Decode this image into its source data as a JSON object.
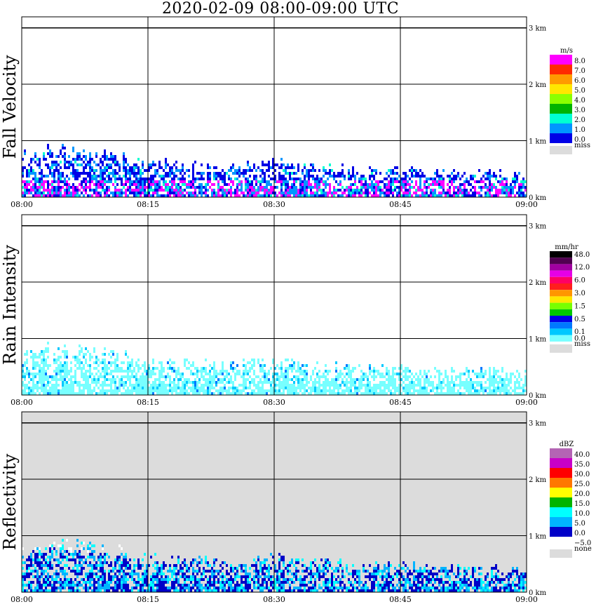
{
  "title": "2020-02-09   08:00-09:00 UTC",
  "chart_data": [
    {
      "type": "heatmap",
      "ylabel": "Fall Velocity",
      "x_ticks": [
        "08:00",
        "08:15",
        "08:30",
        "08:45",
        "09:00"
      ],
      "y_ticks": [
        "0 km",
        "1 km",
        "2 km",
        "3 km"
      ],
      "xlim": [
        "08:00",
        "09:00"
      ],
      "ylim_km": [
        0,
        3.2
      ],
      "grid": true,
      "background": "#ffffff",
      "echo_top_km": [
        {
          "time": "08:00",
          "top_km": 0.75
        },
        {
          "time": "08:05",
          "top_km": 0.9
        },
        {
          "time": "08:10",
          "top_km": 0.8
        },
        {
          "time": "08:15",
          "top_km": 0.6
        },
        {
          "time": "08:20",
          "top_km": 0.6
        },
        {
          "time": "08:25",
          "top_km": 0.55
        },
        {
          "time": "08:30",
          "top_km": 0.65
        },
        {
          "time": "08:35",
          "top_km": 0.55
        },
        {
          "time": "08:40",
          "top_km": 0.5
        },
        {
          "time": "08:45",
          "top_km": 0.5
        },
        {
          "time": "08:50",
          "top_km": 0.45
        },
        {
          "time": "08:55",
          "top_km": 0.45
        },
        {
          "time": "09:00",
          "top_km": 0.4
        }
      ],
      "colorbar": {
        "unit": "m/s",
        "entries": [
          {
            "label": "8.0",
            "color": "#ff00ff"
          },
          {
            "label": "7.0",
            "color": "#ff2a00"
          },
          {
            "label": "6.0",
            "color": "#ff9a00"
          },
          {
            "label": "5.0",
            "color": "#ffe600"
          },
          {
            "label": "4.0",
            "color": "#8cff00"
          },
          {
            "label": "3.0",
            "color": "#00b400"
          },
          {
            "label": "2.0",
            "color": "#00ffd2"
          },
          {
            "label": "1.0",
            "color": "#0096ff"
          },
          {
            "label": "0.0",
            "color": "#0000e6"
          }
        ],
        "missing_label": "miss",
        "missing_color": "#dcdcdc"
      }
    },
    {
      "type": "heatmap",
      "ylabel": "Rain Intensity",
      "x_ticks": [
        "08:00",
        "08:15",
        "08:30",
        "08:45",
        "09:00"
      ],
      "y_ticks": [
        "0 km",
        "1 km",
        "2 km",
        "3 km"
      ],
      "xlim": [
        "08:00",
        "09:00"
      ],
      "ylim_km": [
        0,
        3.2
      ],
      "grid": true,
      "background": "#ffffff",
      "echo_top_km": [
        {
          "time": "08:00",
          "top_km": 0.75
        },
        {
          "time": "08:05",
          "top_km": 0.9
        },
        {
          "time": "08:10",
          "top_km": 0.8
        },
        {
          "time": "08:15",
          "top_km": 0.6
        },
        {
          "time": "08:20",
          "top_km": 0.6
        },
        {
          "time": "08:25",
          "top_km": 0.55
        },
        {
          "time": "08:30",
          "top_km": 0.65
        },
        {
          "time": "08:35",
          "top_km": 0.55
        },
        {
          "time": "08:40",
          "top_km": 0.5
        },
        {
          "time": "08:45",
          "top_km": 0.5
        },
        {
          "time": "08:50",
          "top_km": 0.45
        },
        {
          "time": "08:55",
          "top_km": 0.45
        },
        {
          "time": "09:00",
          "top_km": 0.4
        }
      ],
      "colorbar": {
        "unit": "mm/hr",
        "entries": [
          {
            "label": "48.0",
            "color": "#000000"
          },
          {
            "label": "",
            "color": "#500050"
          },
          {
            "label": "12.0",
            "color": "#a000a0"
          },
          {
            "label": "",
            "color": "#e600e6"
          },
          {
            "label": "6.0",
            "color": "#ff0064"
          },
          {
            "label": "",
            "color": "#ff1e1e"
          },
          {
            "label": "3.0",
            "color": "#ff9600"
          },
          {
            "label": "",
            "color": "#ffe600"
          },
          {
            "label": "1.5",
            "color": "#78ff00"
          },
          {
            "label": "",
            "color": "#00c800"
          },
          {
            "label": "0.5",
            "color": "#0000e6"
          },
          {
            "label": "",
            "color": "#0078ff"
          },
          {
            "label": "0.1",
            "color": "#00c8ff"
          },
          {
            "label": "0.0",
            "color": "#78ffff"
          }
        ],
        "missing_label": "miss",
        "missing_color": "#dcdcdc"
      }
    },
    {
      "type": "heatmap",
      "ylabel": "Reflectivity",
      "x_ticks": [
        "08:00",
        "08:15",
        "08:30",
        "08:45",
        "09:00"
      ],
      "y_ticks": [
        "0 km",
        "1 km",
        "2 km",
        "3 km"
      ],
      "xlim": [
        "08:00",
        "09:00"
      ],
      "ylim_km": [
        0,
        3.2
      ],
      "grid": true,
      "background": "#dcdcdc",
      "echo_top_km": [
        {
          "time": "08:00",
          "top_km": 0.75
        },
        {
          "time": "08:05",
          "top_km": 0.9
        },
        {
          "time": "08:10",
          "top_km": 0.8
        },
        {
          "time": "08:15",
          "top_km": 0.6
        },
        {
          "time": "08:20",
          "top_km": 0.6
        },
        {
          "time": "08:25",
          "top_km": 0.55
        },
        {
          "time": "08:30",
          "top_km": 0.65
        },
        {
          "time": "08:35",
          "top_km": 0.55
        },
        {
          "time": "08:40",
          "top_km": 0.5
        },
        {
          "time": "08:45",
          "top_km": 0.5
        },
        {
          "time": "08:50",
          "top_km": 0.45
        },
        {
          "time": "08:55",
          "top_km": 0.45
        },
        {
          "time": "09:00",
          "top_km": 0.4
        }
      ],
      "colorbar": {
        "unit": "dBZ",
        "entries": [
          {
            "label": "40.0",
            "color": "#b464b4"
          },
          {
            "label": "35.0",
            "color": "#c800c8"
          },
          {
            "label": "30.0",
            "color": "#ff0000"
          },
          {
            "label": "25.0",
            "color": "#ff7800"
          },
          {
            "label": "20.0",
            "color": "#ffff00"
          },
          {
            "label": "15.0",
            "color": "#00b400"
          },
          {
            "label": "10.0",
            "color": "#00ffff"
          },
          {
            "label": "5.0",
            "color": "#00b4ff"
          },
          {
            "label": "0.0",
            "color": "#0000c8"
          },
          {
            "label": "-5.0",
            "color": "#ffffff"
          }
        ],
        "missing_label": "none",
        "missing_color": "#dcdcdc"
      }
    }
  ]
}
